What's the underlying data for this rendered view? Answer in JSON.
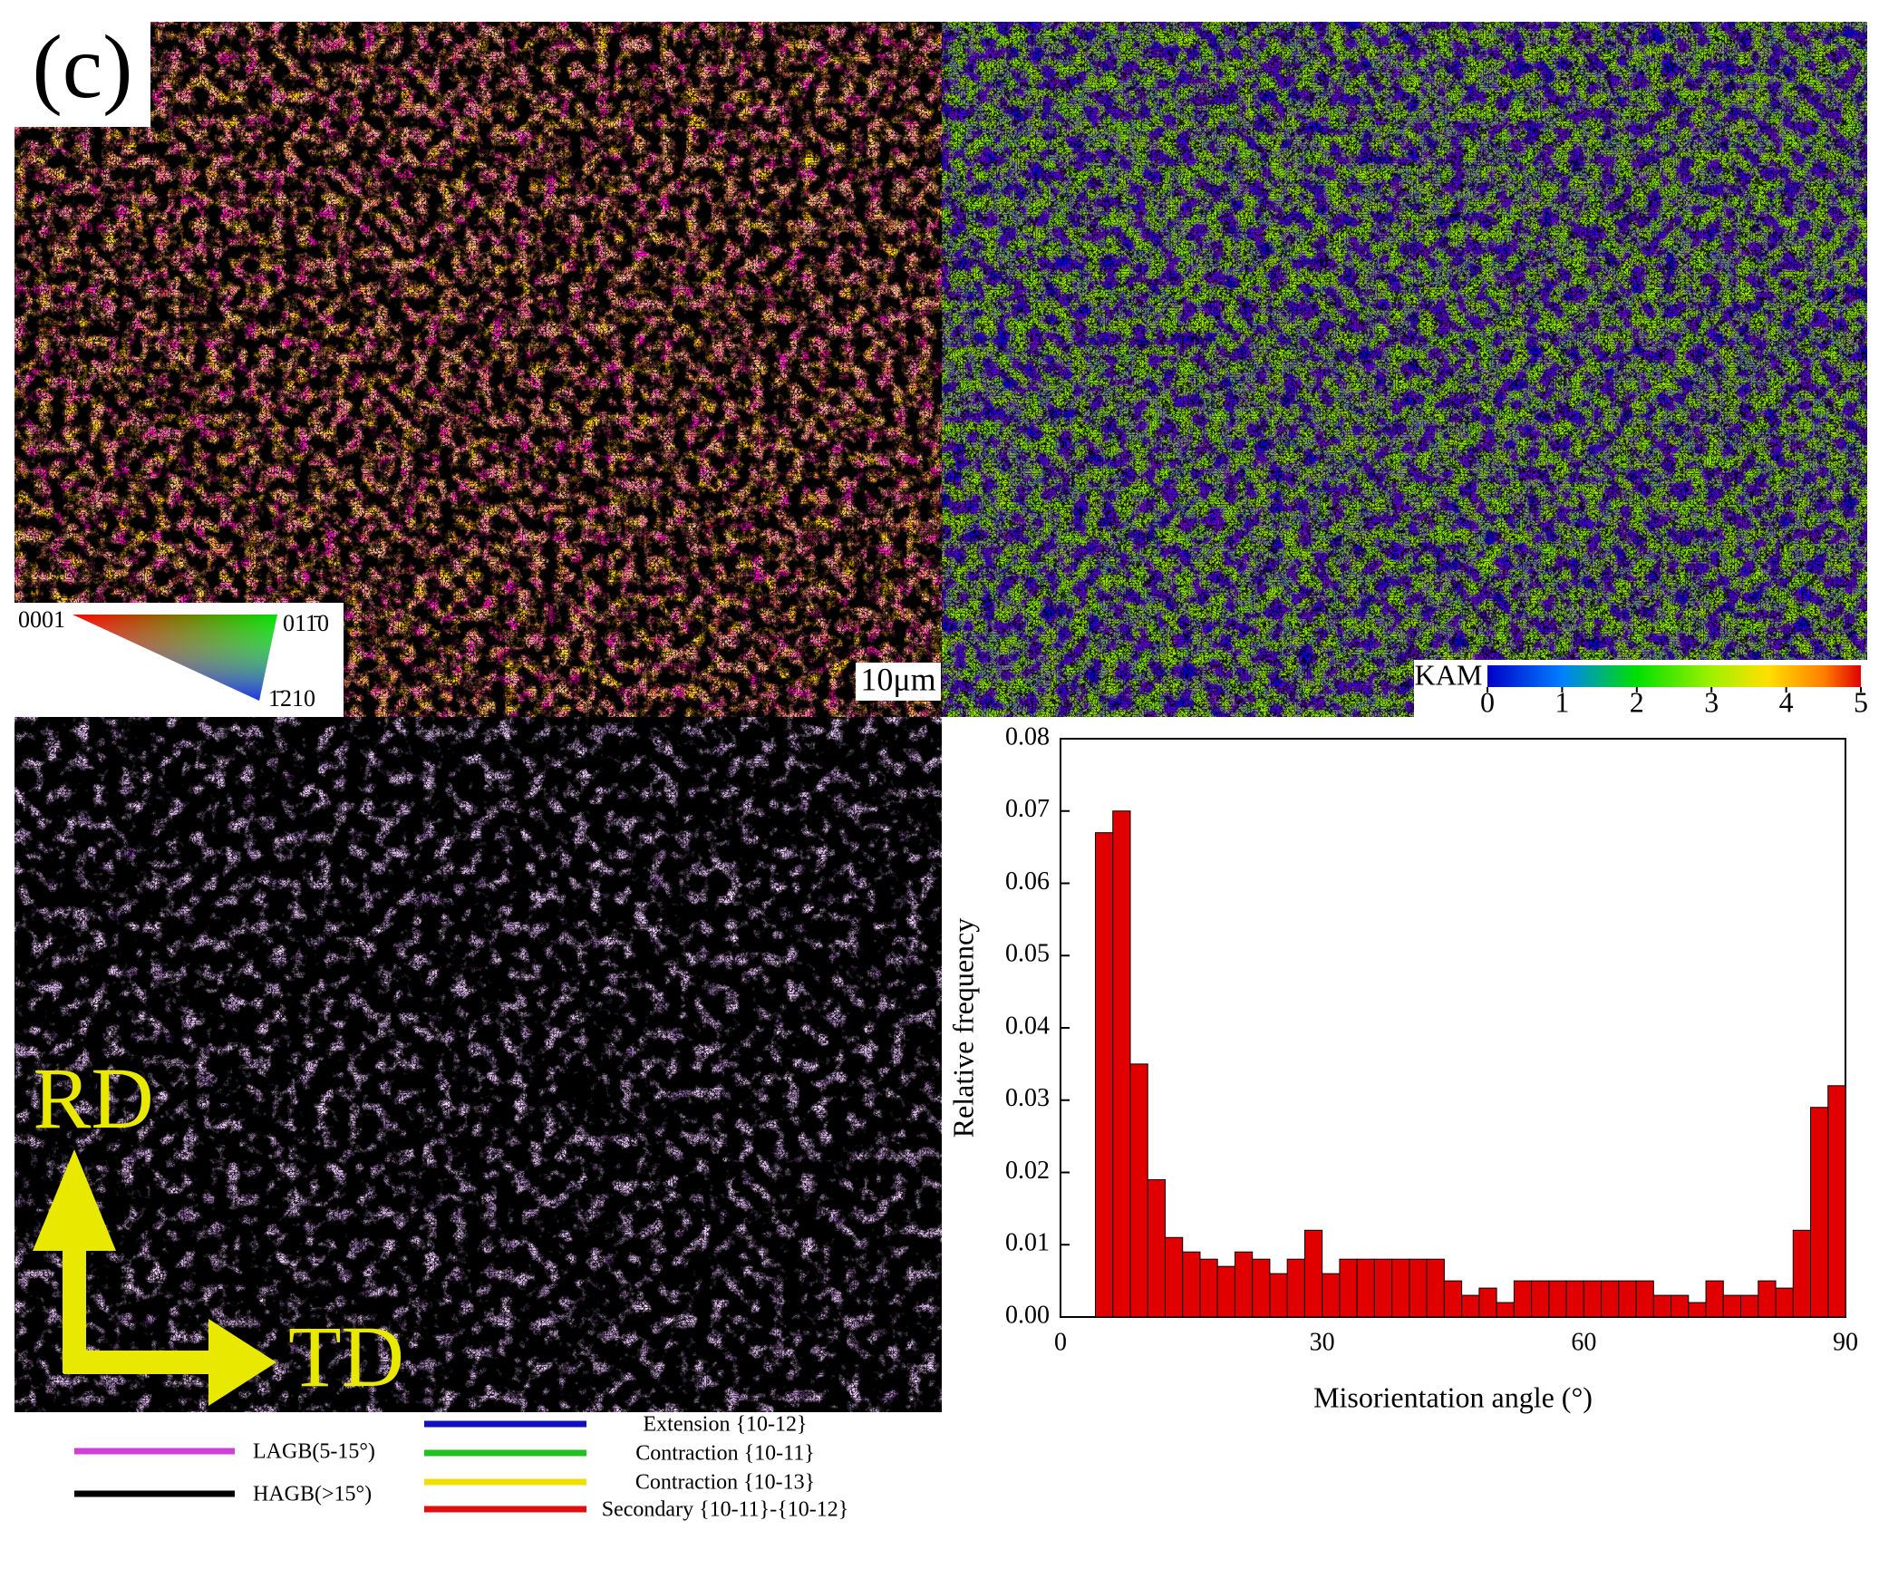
{
  "panel_label": "(c)",
  "ipf_legend": {
    "labels": [
      "0001",
      "011̄0",
      "1̄210"
    ]
  },
  "scale_bar": "10μm",
  "kam_colorbar": {
    "label": "KAM",
    "lim": [
      0,
      5
    ],
    "ticks": [
      0,
      1,
      2,
      3,
      4,
      5
    ]
  },
  "directions": [
    "RD",
    "TD"
  ],
  "boundary_legend": [
    {
      "name": "LAGB(5-15°)",
      "color": "#d040d8"
    },
    {
      "name": "HAGB(>15°)",
      "color": "#000000"
    },
    {
      "name": "Extension {10-12}",
      "color": "#1010c0"
    },
    {
      "name": "Contraction {10-11}",
      "color": "#20c020"
    },
    {
      "name": "Contraction {10-13}",
      "color": "#f0e000"
    },
    {
      "name": "Secondary {10-11}-{10-12}",
      "color": "#e01010"
    }
  ],
  "chart_data": {
    "type": "histogram",
    "bins": [
      4,
      6,
      8,
      10,
      12,
      14,
      16,
      18,
      20,
      22,
      24,
      26,
      28,
      30,
      32,
      34,
      36,
      38,
      40,
      42,
      44,
      46,
      48,
      50,
      52,
      54,
      56,
      58,
      60,
      62,
      64,
      66,
      68,
      70,
      72,
      74,
      76,
      78,
      80,
      82,
      84,
      86,
      88,
      90
    ],
    "values": [
      0.067,
      0.07,
      0.035,
      0.019,
      0.011,
      0.009,
      0.008,
      0.007,
      0.009,
      0.008,
      0.006,
      0.008,
      0.012,
      0.006,
      0.008,
      0.008,
      0.008,
      0.008,
      0.008,
      0.008,
      0.005,
      0.003,
      0.004,
      0.002,
      0.005,
      0.005,
      0.005,
      0.005,
      0.005,
      0.005,
      0.005,
      0.005,
      0.003,
      0.003,
      0.002,
      0.005,
      0.003,
      0.003,
      0.005,
      0.004,
      0.012,
      0.029,
      0.032
    ],
    "color": "#e00000",
    "x_label": "Misorientation angle (°)",
    "y_label": "Relative frequency",
    "xlim": [
      0,
      90
    ],
    "xticks": [
      0,
      30,
      60,
      90
    ],
    "ylim": [
      0,
      0.08
    ],
    "yticks": [
      {
        "value": 0,
        "label": "0.00"
      },
      {
        "value": 0.01,
        "label": "0.01"
      },
      {
        "value": 0.02,
        "label": "0.02"
      },
      {
        "value": 0.03,
        "label": "0.03"
      },
      {
        "value": 0.04,
        "label": "0.04"
      },
      {
        "value": 0.05,
        "label": "0.05"
      },
      {
        "value": 0.06,
        "label": "0.06"
      },
      {
        "value": 0.07,
        "label": "0.07"
      },
      {
        "value": 0.08,
        "label": "0.08"
      }
    ]
  }
}
